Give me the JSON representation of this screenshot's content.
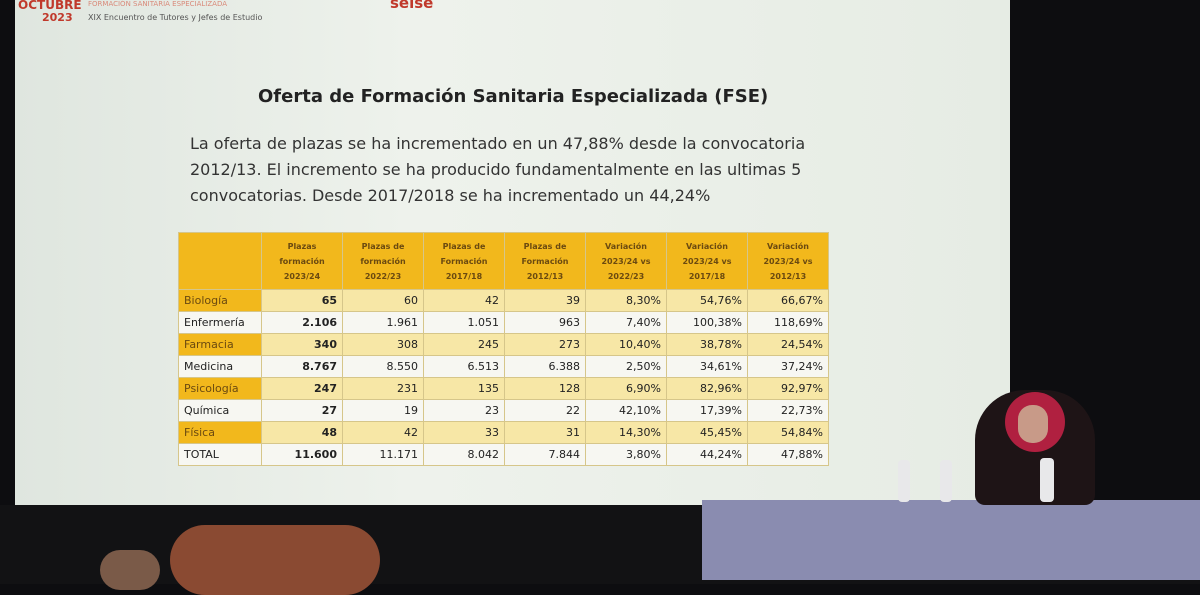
{
  "header": {
    "month": "OCTUBRE",
    "year": "2023",
    "event": "FORMACIÓN SANITARIA ESPECIALIZADA",
    "subtitle": "XIX Encuentro de Tutores y Jefes de Estudio",
    "logo": "seise"
  },
  "slide": {
    "title": "Oferta de Formación Sanitaria Especializada (FSE)",
    "text": "La oferta de plazas se ha incrementado en un 47,88% desde la convocatoria 2012/13. El incremento se ha producido fundamentalmente en las ultimas 5 convocatorias. Desde 2017/2018 se ha incrementado un 44,24%"
  },
  "table": {
    "header": [
      "Plazas formación 2023/24",
      "Plazas de formación 2022/23",
      "Plazas de Formación 2017/18",
      "Plazas de Formación 2012/13",
      "Variación 2023/24 vs 2022/23",
      "Variación 2023/24 vs 2017/18",
      "Variación 2023/24 vs 2012/13"
    ],
    "rows": [
      [
        "Biología",
        "65",
        "60",
        "42",
        "39",
        "8,30%",
        "54,76%",
        "66,67%"
      ],
      [
        "Enfermería",
        "2.106",
        "1.961",
        "1.051",
        "963",
        "7,40%",
        "100,38%",
        "118,69%"
      ],
      [
        "Farmacia",
        "340",
        "308",
        "245",
        "273",
        "10,40%",
        "38,78%",
        "24,54%"
      ],
      [
        "Medicina",
        "8.767",
        "8.550",
        "6.513",
        "6.388",
        "2,50%",
        "34,61%",
        "37,24%"
      ],
      [
        "Psicología",
        "247",
        "231",
        "135",
        "128",
        "6,90%",
        "82,96%",
        "92,97%"
      ],
      [
        "Química",
        "27",
        "19",
        "23",
        "22",
        "42,10%",
        "17,39%",
        "22,73%"
      ],
      [
        "Física",
        "48",
        "42",
        "33",
        "31",
        "14,30%",
        "45,45%",
        "54,84%"
      ],
      [
        "TOTAL",
        "11.600",
        "11.171",
        "8.042",
        "7.844",
        "3,80%",
        "44,24%",
        "47,88%"
      ]
    ]
  }
}
